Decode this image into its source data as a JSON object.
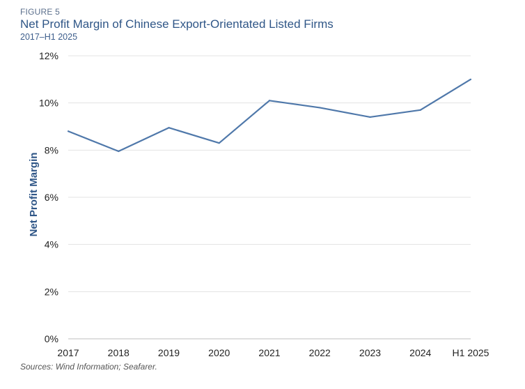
{
  "figure_label": "FIGURE 5",
  "source": "Sources: Wind Information; Seafarer.",
  "chart_data": {
    "type": "line",
    "title": "Net Profit Margin of Chinese Export-Orientated Listed Firms",
    "subtitle": "2017–H1 2025",
    "xlabel": "",
    "ylabel": "Net Profit Margin",
    "categories": [
      "2017",
      "2018",
      "2019",
      "2020",
      "2021",
      "2022",
      "2023",
      "2024",
      "H1 2025"
    ],
    "series": [
      {
        "values": [
          8.8,
          7.95,
          8.95,
          8.3,
          10.1,
          9.8,
          9.4,
          9.7,
          11.0
        ],
        "color": "#4f78aa"
      }
    ],
    "ylim": [
      0,
      12
    ],
    "yticks": [
      0,
      2,
      4,
      6,
      8,
      10,
      12
    ],
    "ytick_labels": [
      "0%",
      "2%",
      "4%",
      "6%",
      "8%",
      "10%",
      "12%"
    ],
    "grid": true,
    "legend": "none"
  }
}
